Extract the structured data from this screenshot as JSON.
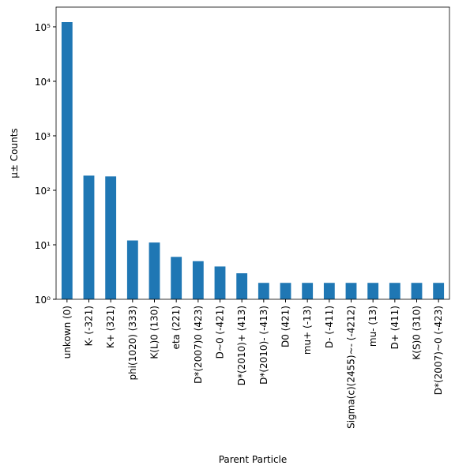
{
  "chart_data": {
    "type": "bar",
    "xlabel": "Parent Particle",
    "ylabel": "μ± Counts",
    "categories": [
      "unkown (0)",
      "K- (-321)",
      "K+ (321)",
      "phi(1020) (333)",
      "K(L)0 (130)",
      "eta (221)",
      "D*(2007)0 (423)",
      "D~0 (-421)",
      "D*(2010)+ (413)",
      "D*(2010)- (-413)",
      "D0 (421)",
      "mu+ (-13)",
      "D- (-411)",
      "Sigma(c)(2455)~- (-4212)",
      "mu- (13)",
      "D+ (411)",
      "K(S)0 (310)",
      "D*(2007)~0 (-423)"
    ],
    "values": [
      122000,
      186,
      180,
      12,
      11,
      6,
      5,
      4,
      3,
      2,
      2,
      2,
      2,
      2,
      2,
      2,
      2,
      2
    ],
    "color": "#1f77b4",
    "log_y": true,
    "ylim": [
      1,
      230000
    ],
    "yticks": [
      {
        "value": 1,
        "label": "10⁰"
      },
      {
        "value": 10,
        "label": "10¹"
      },
      {
        "value": 100,
        "label": "10²"
      },
      {
        "value": 1000,
        "label": "10³"
      },
      {
        "value": 10000,
        "label": "10⁴"
      },
      {
        "value": 100000,
        "label": "10⁵"
      }
    ]
  }
}
